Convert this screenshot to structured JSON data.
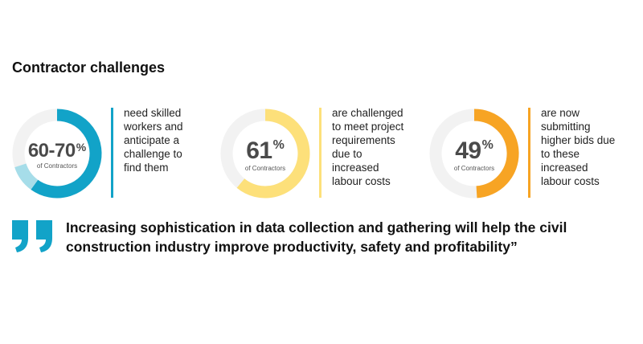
{
  "title": "Contractor challenges",
  "chart_data": {
    "type": "pie",
    "title": "Contractor challenges",
    "series": [
      {
        "name": "Skilled workers",
        "label": "60-70",
        "unit": "%",
        "sublabel": "of Contractors",
        "values": [
          60,
          10
        ],
        "range": [
          60,
          70
        ],
        "description": "need skilled workers and anticipate a challenge to find them",
        "color": "#12a3c8",
        "range_color": "#a6dde9"
      },
      {
        "name": "Labour costs",
        "label": "61",
        "unit": "%",
        "sublabel": "of Contractors",
        "values": [
          61
        ],
        "description": "are challenged to meet project requirements due to increased labour costs",
        "color": "#fde07a"
      },
      {
        "name": "Higher bids",
        "label": "49",
        "unit": "%",
        "sublabel": "of Contractors",
        "values": [
          49
        ],
        "description": "are now submitting higher bids due to these increased labour costs",
        "color": "#f7a424"
      }
    ],
    "track_color": "#f2f2f2"
  },
  "descriptions": [
    [
      "need skilled",
      "workers and",
      "anticipate a",
      "challenge to",
      "find them"
    ],
    [
      "are challenged",
      "to meet project",
      "requirements",
      "due to",
      "increased",
      "labour costs"
    ],
    [
      "are now",
      "submitting",
      "higher bids due",
      "to these",
      "increased",
      "labour costs"
    ]
  ],
  "quote": {
    "icon": "quote-icon",
    "line1": "Increasing sophistication in data collection and gathering will help the civil",
    "line2": "construction industry improve productivity, safety and profitability”",
    "color": "#12a3c8"
  },
  "bar_colors": [
    "#12a3c8",
    "#fde07a",
    "#f7a424"
  ]
}
